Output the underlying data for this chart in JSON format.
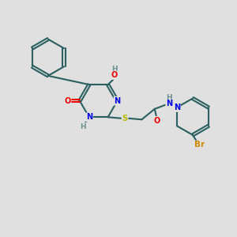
{
  "background_color": "#e0e0e0",
  "bond_color": "#2a6060",
  "bond_width": 1.5,
  "atom_colors": {
    "C": "#2a6060",
    "N": "#0000ee",
    "O": "#ee0000",
    "S": "#bbbb00",
    "Br": "#cc8800",
    "H": "#6a9090"
  },
  "font_size": 7.0
}
